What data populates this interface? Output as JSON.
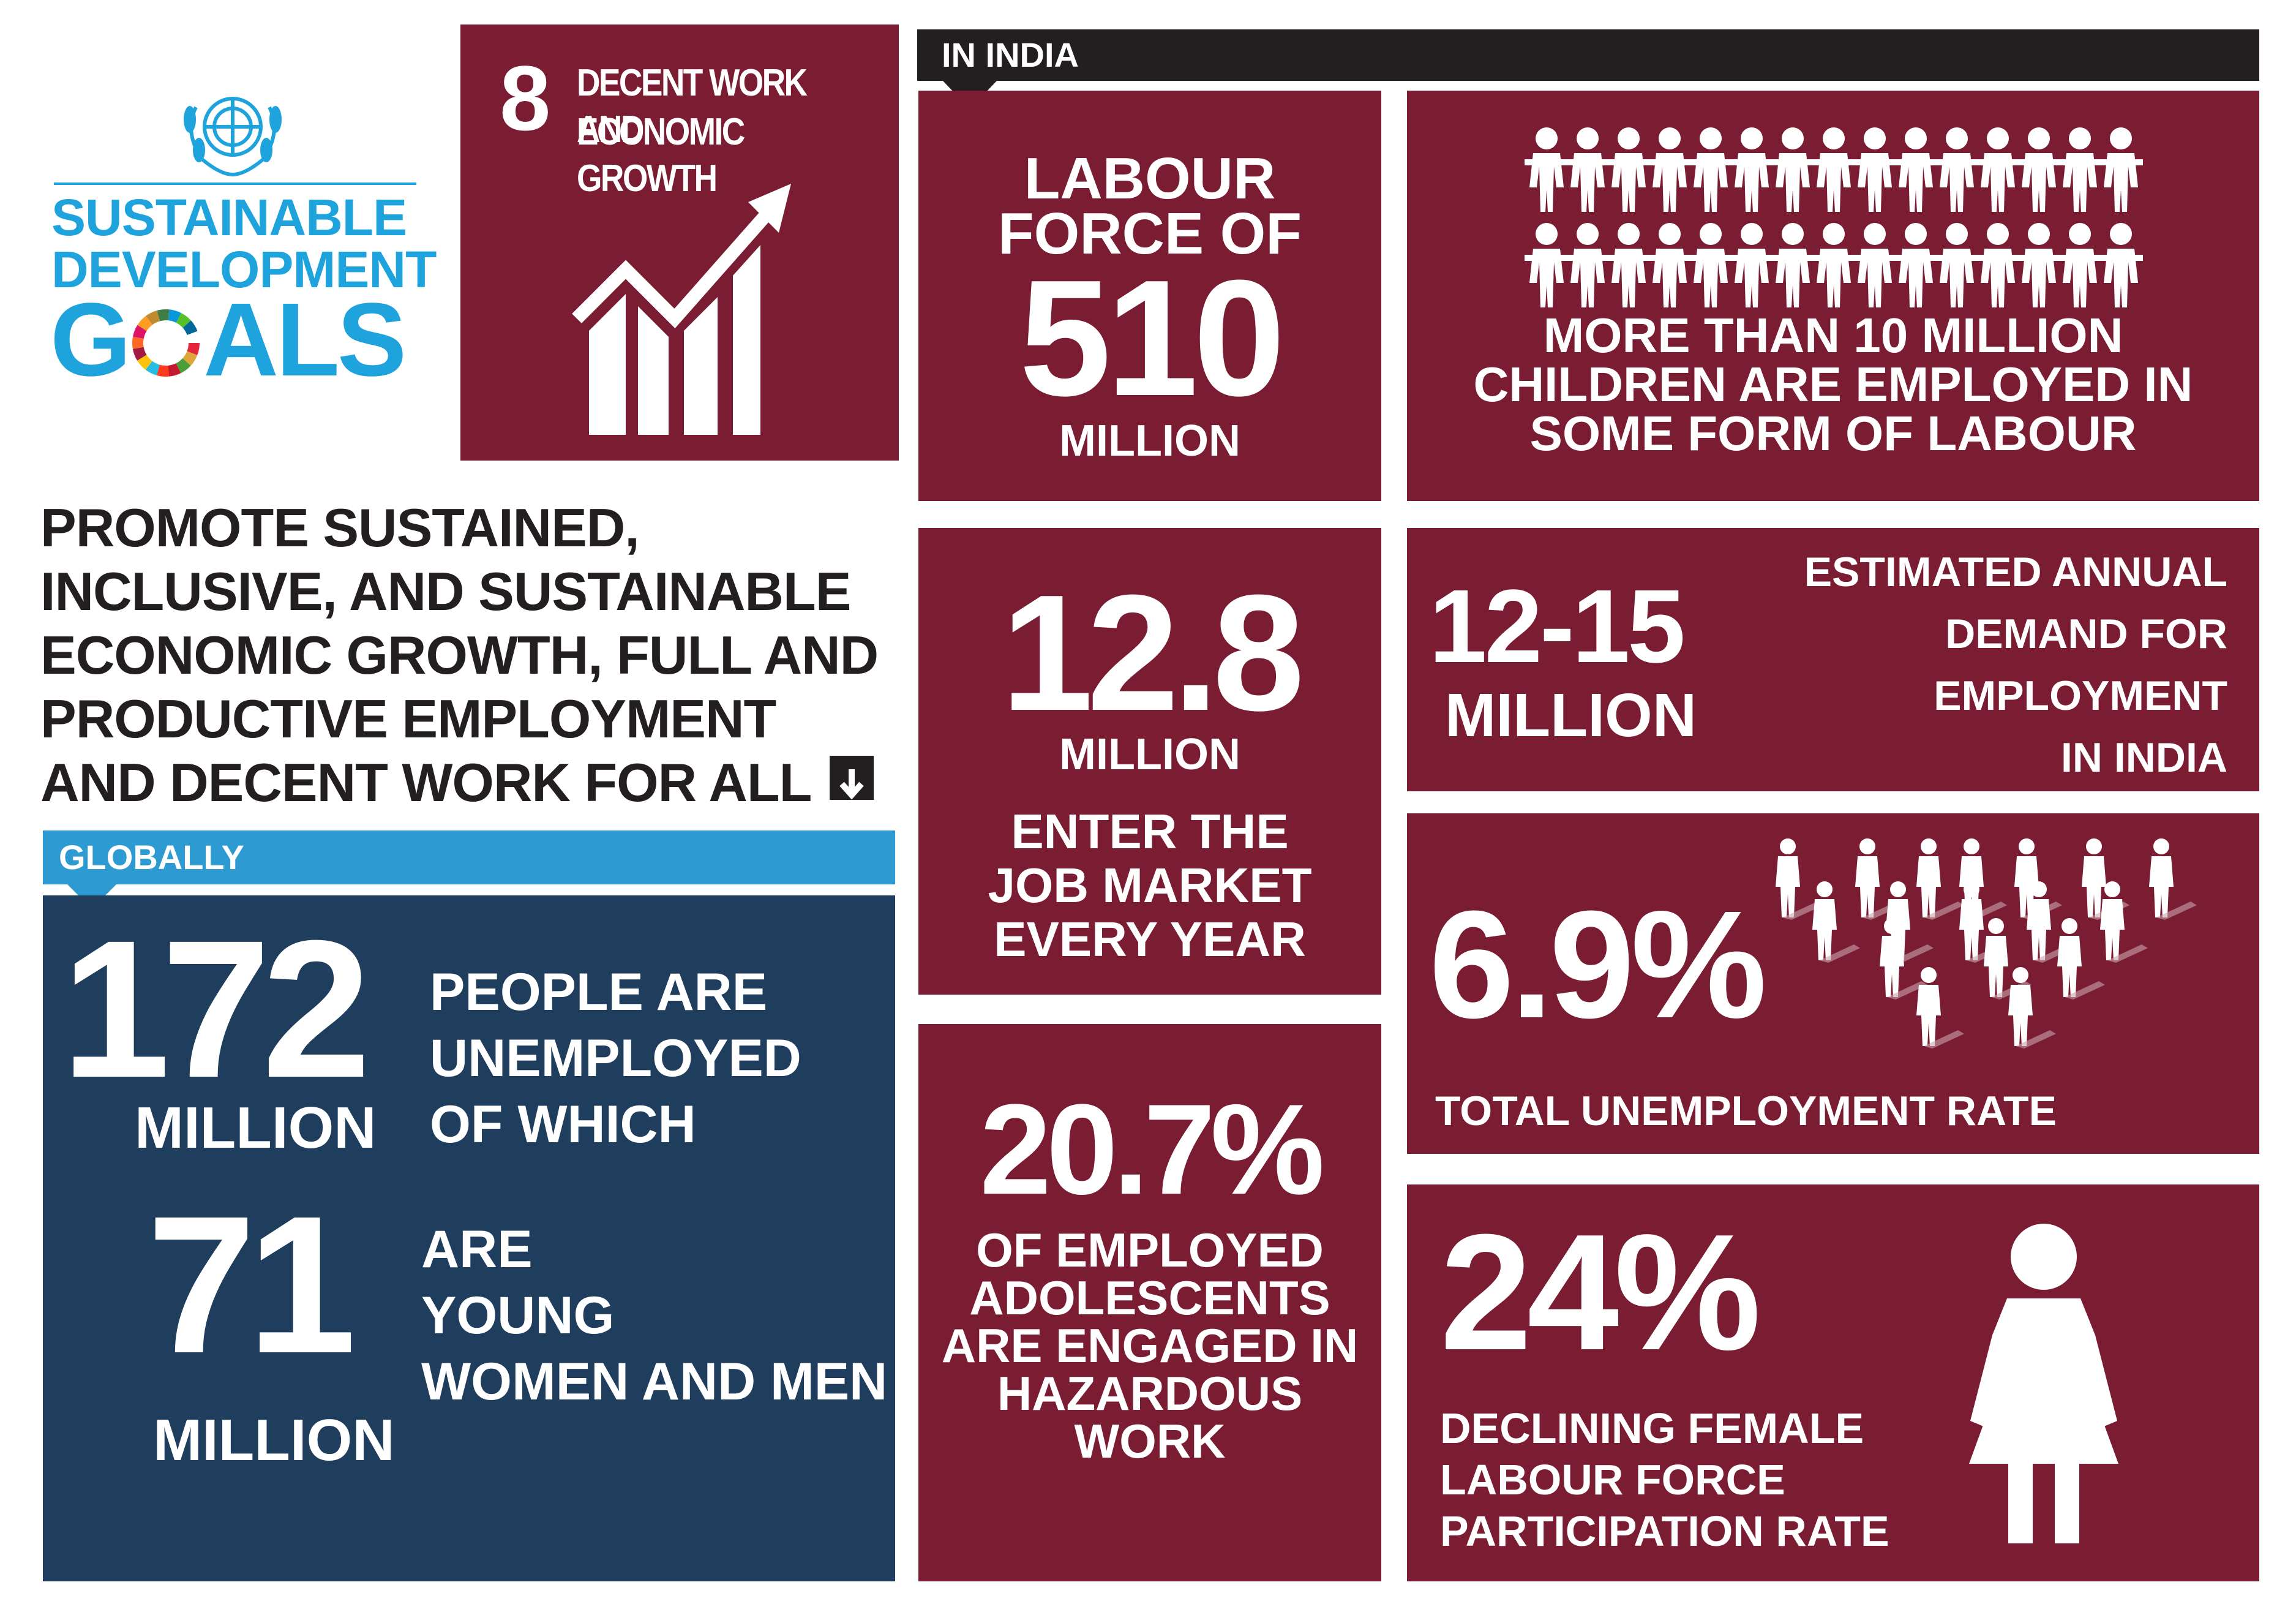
{
  "sdg": {
    "line1": "SUSTAINABLE",
    "line2": "DEVELOPMENT",
    "line3_a": "G",
    "line3_b": "ALS",
    "colors": {
      "blue": "#1fa3dd",
      "maroon": "#7b1d32",
      "navy": "#1f3d5c",
      "dark_text": "#231f20",
      "light_blue": "#2e9ad2"
    }
  },
  "goal": {
    "number": "8",
    "title_line1": "DECENT WORK AND",
    "title_line2": "ECONOMIC GROWTH",
    "icon": "growth-chart-icon"
  },
  "headline": {
    "lines": [
      "PROMOTE SUSTAINED,",
      "INCLUSIVE, AND SUSTAINABLE",
      "ECONOMIC GROWTH, FULL AND",
      "PRODUCTIVE EMPLOYMENT",
      "AND DECENT WORK FOR ALL"
    ],
    "icon": "down-arrow-icon"
  },
  "global": {
    "banner": "GLOBALLY",
    "stat1_value": "172",
    "stat1_unit": "MILLION",
    "stat1_text": [
      "PEOPLE ARE",
      "UNEMPLOYED",
      "OF WHICH"
    ],
    "stat2_value": "71",
    "stat2_unit": "MILLION",
    "stat2_text": [
      "ARE",
      "YOUNG",
      "WOMEN AND MEN"
    ]
  },
  "india": {
    "banner": "IN INDIA",
    "labour": {
      "line1": "LABOUR",
      "line2": "FORCE OF",
      "value": "510",
      "unit": "MILLION"
    },
    "children": {
      "lines": [
        "MORE THAN 10 MILLION",
        "CHILDREN ARE EMPLOYED IN",
        "SOME FORM OF LABOUR"
      ],
      "icon": "children-row-icon"
    },
    "enter": {
      "value": "12.8",
      "unit": "MILLION",
      "lines": [
        "ENTER THE",
        "JOB MARKET",
        "EVERY YEAR"
      ]
    },
    "demand": {
      "value": "12-15",
      "unit": "MILLION",
      "lines": [
        "ESTIMATED ANNUAL",
        "DEMAND FOR",
        "EMPLOYMENT",
        "IN INDIA"
      ]
    },
    "unemployment": {
      "value": "6.9%",
      "label": "TOTAL UNEMPLOYMENT RATE",
      "icon": "people-crowd-icon"
    },
    "adolescents": {
      "value": "20.7%",
      "lines": [
        "OF EMPLOYED",
        "ADOLESCENTS",
        "ARE ENGAGED IN",
        "HAZARDOUS",
        "WORK"
      ]
    },
    "female": {
      "value": "24%",
      "lines": [
        "DECLINING FEMALE",
        "LABOUR FORCE",
        "PARTICIPATION RATE"
      ],
      "icon": "woman-icon"
    }
  }
}
